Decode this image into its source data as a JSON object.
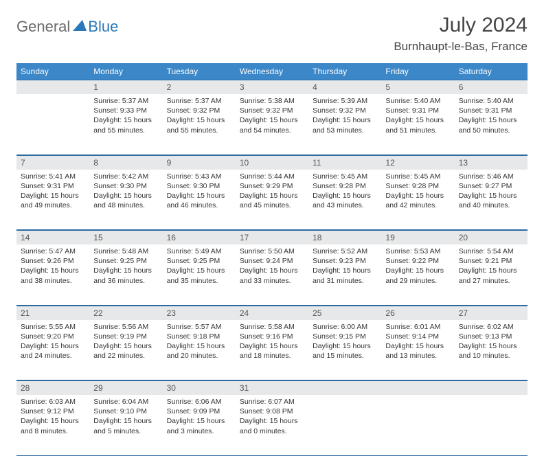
{
  "brand": {
    "part1": "General",
    "part2": "Blue"
  },
  "title": "July 2024",
  "location": "Burnhaupt-le-Bas, France",
  "colors": {
    "header_bg": "#3b87c8",
    "header_text": "#ffffff",
    "daynum_bg": "#e7e8e9",
    "border": "#2a6aa3",
    "brand_gray": "#6a6a6a",
    "brand_blue": "#2a77bb"
  },
  "weekdays": [
    "Sunday",
    "Monday",
    "Tuesday",
    "Wednesday",
    "Thursday",
    "Friday",
    "Saturday"
  ],
  "weeks": [
    [
      null,
      {
        "n": "1",
        "sr": "5:37 AM",
        "ss": "9:33 PM",
        "dl": "15 hours and 55 minutes."
      },
      {
        "n": "2",
        "sr": "5:37 AM",
        "ss": "9:32 PM",
        "dl": "15 hours and 55 minutes."
      },
      {
        "n": "3",
        "sr": "5:38 AM",
        "ss": "9:32 PM",
        "dl": "15 hours and 54 minutes."
      },
      {
        "n": "4",
        "sr": "5:39 AM",
        "ss": "9:32 PM",
        "dl": "15 hours and 53 minutes."
      },
      {
        "n": "5",
        "sr": "5:40 AM",
        "ss": "9:31 PM",
        "dl": "15 hours and 51 minutes."
      },
      {
        "n": "6",
        "sr": "5:40 AM",
        "ss": "9:31 PM",
        "dl": "15 hours and 50 minutes."
      }
    ],
    [
      {
        "n": "7",
        "sr": "5:41 AM",
        "ss": "9:31 PM",
        "dl": "15 hours and 49 minutes."
      },
      {
        "n": "8",
        "sr": "5:42 AM",
        "ss": "9:30 PM",
        "dl": "15 hours and 48 minutes."
      },
      {
        "n": "9",
        "sr": "5:43 AM",
        "ss": "9:30 PM",
        "dl": "15 hours and 46 minutes."
      },
      {
        "n": "10",
        "sr": "5:44 AM",
        "ss": "9:29 PM",
        "dl": "15 hours and 45 minutes."
      },
      {
        "n": "11",
        "sr": "5:45 AM",
        "ss": "9:28 PM",
        "dl": "15 hours and 43 minutes."
      },
      {
        "n": "12",
        "sr": "5:45 AM",
        "ss": "9:28 PM",
        "dl": "15 hours and 42 minutes."
      },
      {
        "n": "13",
        "sr": "5:46 AM",
        "ss": "9:27 PM",
        "dl": "15 hours and 40 minutes."
      }
    ],
    [
      {
        "n": "14",
        "sr": "5:47 AM",
        "ss": "9:26 PM",
        "dl": "15 hours and 38 minutes."
      },
      {
        "n": "15",
        "sr": "5:48 AM",
        "ss": "9:25 PM",
        "dl": "15 hours and 36 minutes."
      },
      {
        "n": "16",
        "sr": "5:49 AM",
        "ss": "9:25 PM",
        "dl": "15 hours and 35 minutes."
      },
      {
        "n": "17",
        "sr": "5:50 AM",
        "ss": "9:24 PM",
        "dl": "15 hours and 33 minutes."
      },
      {
        "n": "18",
        "sr": "5:52 AM",
        "ss": "9:23 PM",
        "dl": "15 hours and 31 minutes."
      },
      {
        "n": "19",
        "sr": "5:53 AM",
        "ss": "9:22 PM",
        "dl": "15 hours and 29 minutes."
      },
      {
        "n": "20",
        "sr": "5:54 AM",
        "ss": "9:21 PM",
        "dl": "15 hours and 27 minutes."
      }
    ],
    [
      {
        "n": "21",
        "sr": "5:55 AM",
        "ss": "9:20 PM",
        "dl": "15 hours and 24 minutes."
      },
      {
        "n": "22",
        "sr": "5:56 AM",
        "ss": "9:19 PM",
        "dl": "15 hours and 22 minutes."
      },
      {
        "n": "23",
        "sr": "5:57 AM",
        "ss": "9:18 PM",
        "dl": "15 hours and 20 minutes."
      },
      {
        "n": "24",
        "sr": "5:58 AM",
        "ss": "9:16 PM",
        "dl": "15 hours and 18 minutes."
      },
      {
        "n": "25",
        "sr": "6:00 AM",
        "ss": "9:15 PM",
        "dl": "15 hours and 15 minutes."
      },
      {
        "n": "26",
        "sr": "6:01 AM",
        "ss": "9:14 PM",
        "dl": "15 hours and 13 minutes."
      },
      {
        "n": "27",
        "sr": "6:02 AM",
        "ss": "9:13 PM",
        "dl": "15 hours and 10 minutes."
      }
    ],
    [
      {
        "n": "28",
        "sr": "6:03 AM",
        "ss": "9:12 PM",
        "dl": "15 hours and 8 minutes."
      },
      {
        "n": "29",
        "sr": "6:04 AM",
        "ss": "9:10 PM",
        "dl": "15 hours and 5 minutes."
      },
      {
        "n": "30",
        "sr": "6:06 AM",
        "ss": "9:09 PM",
        "dl": "15 hours and 3 minutes."
      },
      {
        "n": "31",
        "sr": "6:07 AM",
        "ss": "9:08 PM",
        "dl": "15 hours and 0 minutes."
      },
      null,
      null,
      null
    ]
  ],
  "labels": {
    "sunrise": "Sunrise:",
    "sunset": "Sunset:",
    "daylight": "Daylight:"
  }
}
